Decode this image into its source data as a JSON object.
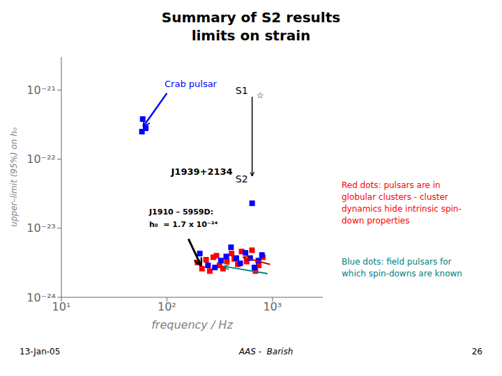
{
  "chart_data": {
    "type": "scatter",
    "title": "Summary of S2 results",
    "subtitle": "limits on strain",
    "x_label": "frequency / Hz",
    "y_label": "upper–limit (95%)  on  h₀",
    "log": true,
    "grid": false,
    "marker": "square",
    "xlim": [
      10,
      3000
    ],
    "ylim": [
      1e-24,
      3e-21
    ],
    "xticks": [
      {
        "value": 10,
        "label": "10¹"
      },
      {
        "value": 100,
        "label": "10²"
      },
      {
        "value": 1000,
        "label": "10³"
      }
    ],
    "yticks": [
      {
        "value": 1e-24,
        "label": "10⁻²⁴"
      },
      {
        "value": 1e-23,
        "label": "10⁻²³"
      },
      {
        "value": 1e-22,
        "label": "10⁻²²"
      },
      {
        "value": 1e-21,
        "label": "10⁻²¹"
      }
    ],
    "series": [
      {
        "color": "blue",
        "x": [
          59,
          63,
          58
        ],
        "values": [
          3.8e-22,
          2.8e-22,
          2.5e-22
        ]
      },
      {
        "color": "blue",
        "x": [
          642
        ],
        "values": [
          2.3e-23
        ]
      },
      {
        "color": "red",
        "x": [
          195,
          215,
          235,
          255,
          275,
          295,
          315,
          340,
          370,
          410,
          435,
          470,
          510,
          570,
          640,
          690,
          740,
          810
        ],
        "values": [
          3.2e-24,
          2.6e-24,
          3.5e-24,
          2.4e-24,
          3.8e-24,
          4e-24,
          2.9e-24,
          2.6e-24,
          3.3e-24,
          4.3e-24,
          3.6e-24,
          3e-24,
          4.6e-24,
          3.3e-24,
          4.8e-24,
          2.4e-24,
          2.9e-24,
          3.8e-24
        ]
      },
      {
        "color": "blue",
        "x": [
          205,
          245,
          285,
          325,
          365,
          405,
          455,
          495,
          555,
          615,
          675,
          735,
          795
        ],
        "values": [
          4.3e-24,
          2.9e-24,
          2.7e-24,
          3.4e-24,
          3.9e-24,
          5.3e-24,
          3.7e-24,
          3.1e-24,
          4.4e-24,
          3.7e-24,
          2.7e-24,
          3.4e-24,
          4.1e-24
        ]
      }
    ],
    "annotations": [
      {
        "text": "Crab pulsar",
        "color": "blue"
      },
      {
        "text": "J1939+2134"
      },
      {
        "text": "S1"
      },
      {
        "text": "☆"
      },
      {
        "text": "S2"
      },
      {
        "text": "J1910 – 5959D:"
      },
      {
        "text": "h₀  = 1.7 x 10⁻²⁴"
      },
      {
        "text": "Red dots: pulsars are in\nglobular clusters - cluster\ndynamics hide intrinsic spin-\ndown properties",
        "color": "red"
      },
      {
        "text": "Blue dots: field pulsars for\nwhich spin-downs are known",
        "color": "teal"
      }
    ],
    "footer": [
      "13-Jan-05",
      "AAS -  Barish",
      "26"
    ]
  }
}
